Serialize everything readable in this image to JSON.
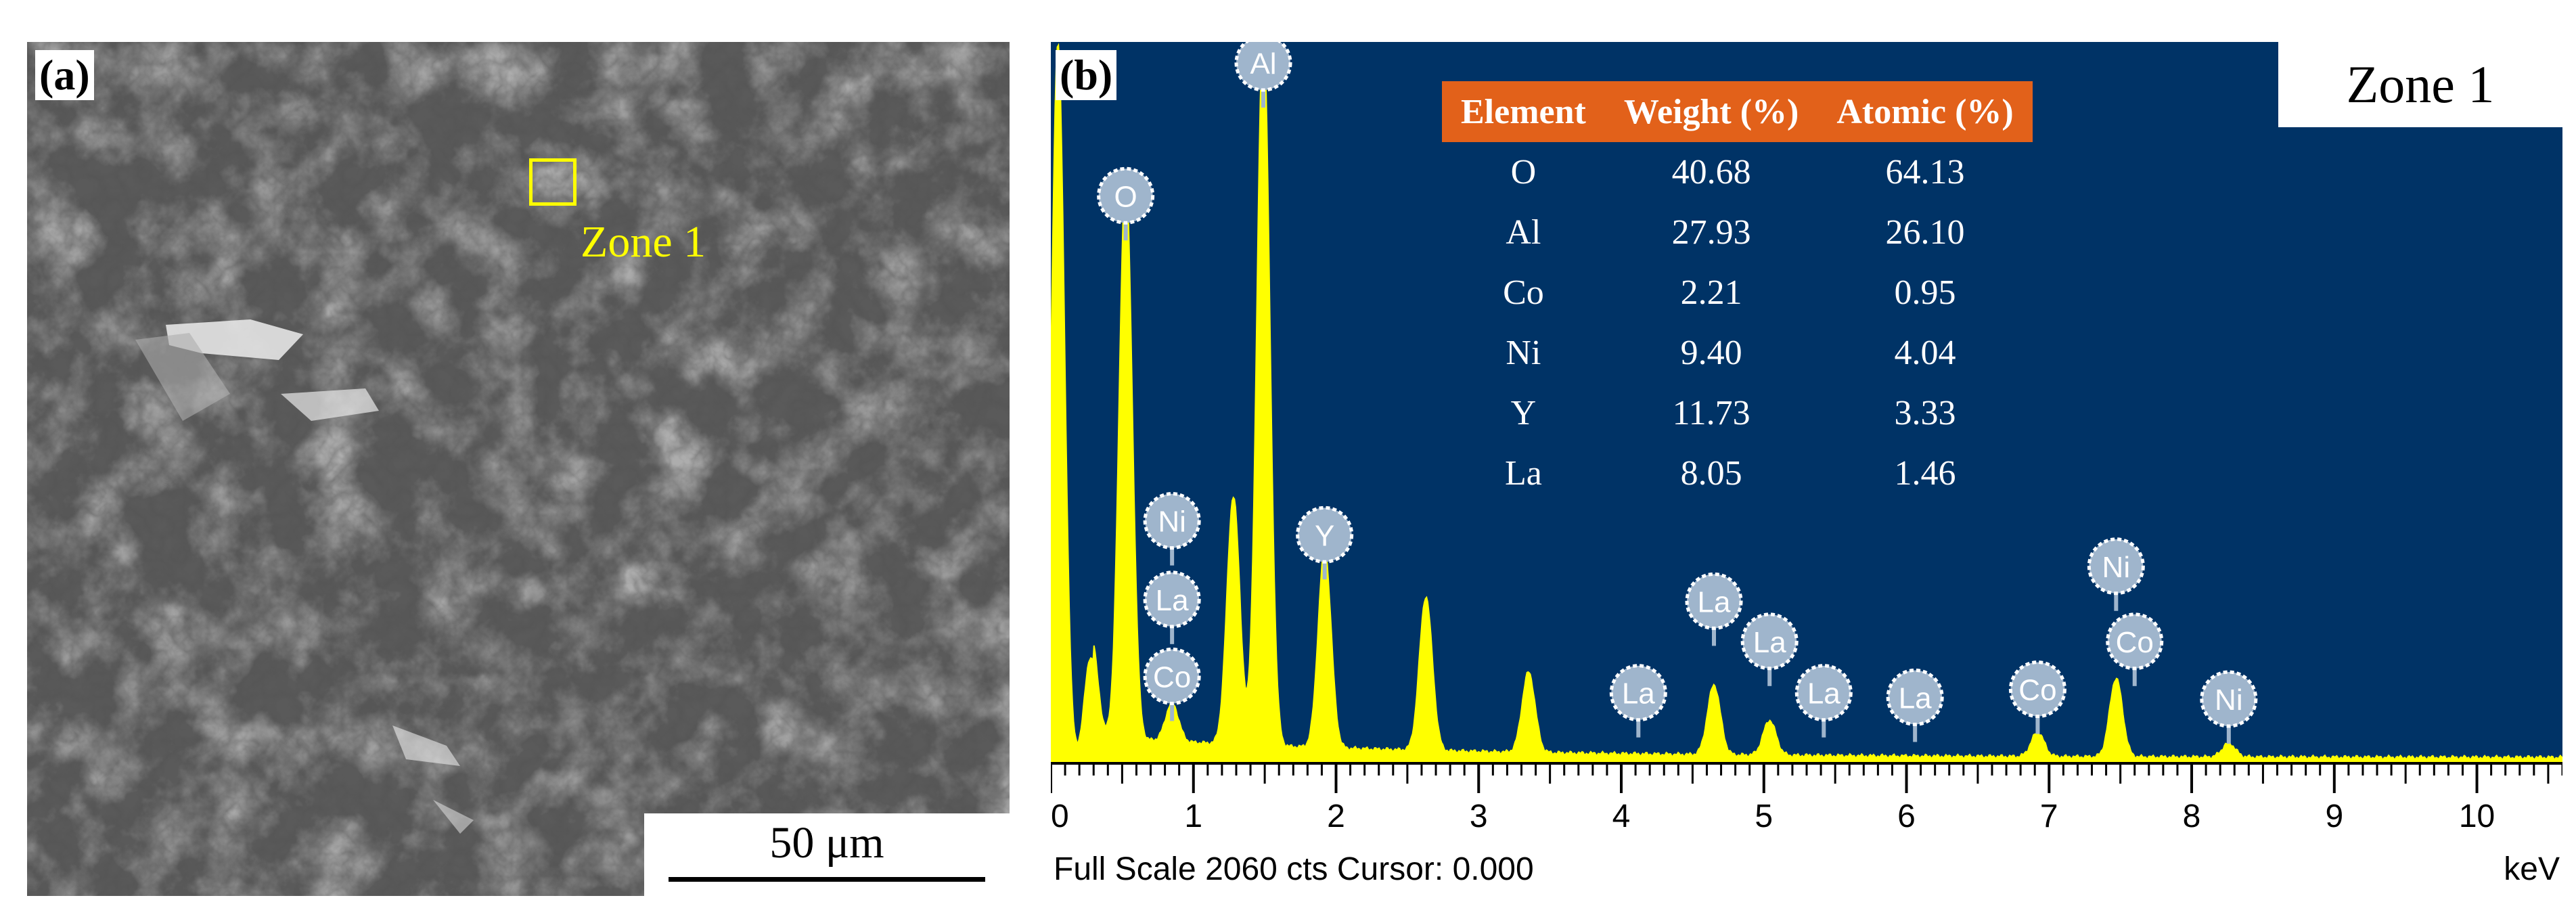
{
  "panel_a": {
    "label": "(a)",
    "zone_label": "Zone 1",
    "scale_bar_label": "50 μm"
  },
  "panel_b": {
    "label": "(b)",
    "zone_title": "Zone 1",
    "table": {
      "headers": [
        "Element",
        "Weight (%)",
        "Atomic (%)"
      ],
      "rows": [
        [
          "O",
          "40.68",
          "64.13"
        ],
        [
          "Al",
          "27.93",
          "26.10"
        ],
        [
          "Co",
          "2.21",
          "0.95"
        ],
        [
          "Ni",
          "9.40",
          "4.04"
        ],
        [
          "Y",
          "11.73",
          "3.33"
        ],
        [
          "La",
          "8.05",
          "1.46"
        ]
      ]
    },
    "footer_text": "Full Scale 2060 cts Cursor: 0.000",
    "x_unit": "keV"
  },
  "colors": {
    "background": "#003366",
    "spectrum": "#ffff00",
    "table_header": "#e2611a",
    "marker": "#9fb5cc",
    "zone_marker": "#ffff00"
  },
  "chart_data": {
    "type": "area",
    "title": "",
    "xlabel": "keV",
    "ylabel": "",
    "xlim": [
      0,
      10.6
    ],
    "ylim": [
      0,
      2060
    ],
    "x_ticks": [
      "0",
      "1",
      "2",
      "3",
      "4",
      "5",
      "6",
      "7",
      "8",
      "9",
      "10"
    ],
    "peaks": [
      {
        "x": 0.05,
        "y": 2060
      },
      {
        "x": 0.28,
        "y": 300
      },
      {
        "x": 0.525,
        "y": 1620
      },
      {
        "x": 0.85,
        "y": 110
      },
      {
        "x": 1.28,
        "y": 710
      },
      {
        "x": 1.49,
        "y": 2060
      },
      {
        "x": 1.92,
        "y": 570
      },
      {
        "x": 2.63,
        "y": 440
      },
      {
        "x": 3.35,
        "y": 230
      },
      {
        "x": 4.65,
        "y": 200
      },
      {
        "x": 5.04,
        "y": 100
      },
      {
        "x": 6.92,
        "y": 70
      },
      {
        "x": 7.47,
        "y": 225
      },
      {
        "x": 8.26,
        "y": 40
      }
    ],
    "element_markers": [
      {
        "label": "Al",
        "x": 1.49,
        "y": 2000
      },
      {
        "label": "O",
        "x": 0.525,
        "y": 1620
      },
      {
        "label": "Ni",
        "x": 0.85,
        "y": 690
      },
      {
        "label": "La",
        "x": 0.85,
        "y": 465
      },
      {
        "label": "Co",
        "x": 0.85,
        "y": 245
      },
      {
        "label": "Y",
        "x": 1.92,
        "y": 650
      },
      {
        "label": "La",
        "x": 4.65,
        "y": 460
      },
      {
        "label": "La",
        "x": 5.04,
        "y": 345
      },
      {
        "label": "La",
        "x": 5.42,
        "y": 198
      },
      {
        "label": "La",
        "x": 4.12,
        "y": 198
      },
      {
        "label": "La",
        "x": 6.06,
        "y": 185
      },
      {
        "label": "Co",
        "x": 6.92,
        "y": 208
      },
      {
        "label": "Ni",
        "x": 7.47,
        "y": 560
      },
      {
        "label": "Co",
        "x": 7.6,
        "y": 345
      },
      {
        "label": "Ni",
        "x": 8.26,
        "y": 180
      }
    ]
  }
}
